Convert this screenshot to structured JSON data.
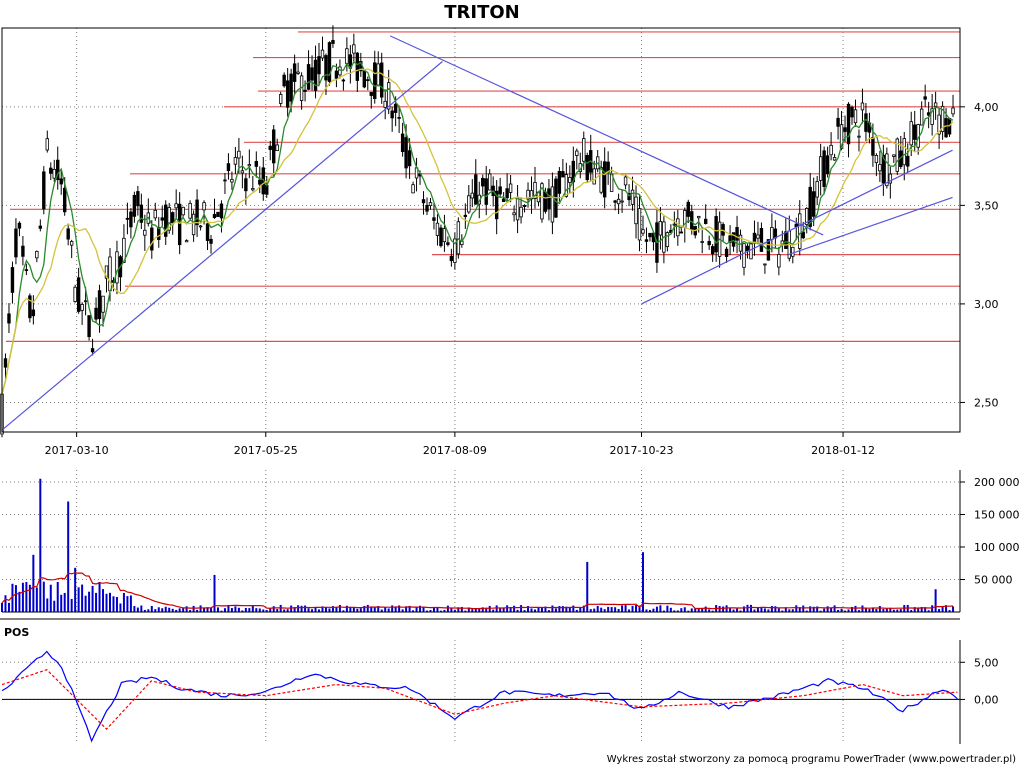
{
  "chart_data": [
    {
      "type": "candlestick",
      "title": "TRITON",
      "x_ticks": [
        "2017-03-10",
        "2017-05-25",
        "2017-08-09",
        "2017-10-23",
        "2018-01-12"
      ],
      "y_ticks": [
        "2,50",
        "3,00",
        "3,50",
        "4,00"
      ],
      "ylim": [
        2.35,
        4.4
      ],
      "grid": true,
      "close_path": [
        [
          "2017-02-08",
          2.45
        ],
        [
          "2017-02-14",
          3.4
        ],
        [
          "2017-02-20",
          2.9
        ],
        [
          "2017-02-26",
          3.75
        ],
        [
          "2017-03-04",
          3.6
        ],
        [
          "2017-03-10",
          3.05
        ],
        [
          "2017-03-16",
          2.85
        ],
        [
          "2017-03-22",
          3.1
        ],
        [
          "2017-03-28",
          3.25
        ],
        [
          "2017-04-03",
          3.5
        ],
        [
          "2017-04-09",
          3.35
        ],
        [
          "2017-04-15",
          3.45
        ],
        [
          "2017-04-21",
          3.4
        ],
        [
          "2017-04-27",
          3.42
        ],
        [
          "2017-05-03",
          3.4
        ],
        [
          "2017-05-13",
          3.7
        ],
        [
          "2017-05-25",
          3.6
        ],
        [
          "2017-06-02",
          4.1
        ],
        [
          "2017-06-12",
          4.15
        ],
        [
          "2017-06-22",
          4.25
        ],
        [
          "2017-07-02",
          4.2
        ],
        [
          "2017-07-12",
          4.1
        ],
        [
          "2017-07-22",
          3.7
        ],
        [
          "2017-08-01",
          3.4
        ],
        [
          "2017-08-09",
          3.3
        ],
        [
          "2017-08-19",
          3.6
        ],
        [
          "2017-08-29",
          3.5
        ],
        [
          "2017-09-08",
          3.55
        ],
        [
          "2017-09-18",
          3.52
        ],
        [
          "2017-09-28",
          3.75
        ],
        [
          "2017-10-08",
          3.65
        ],
        [
          "2017-10-18",
          3.55
        ],
        [
          "2017-10-23",
          3.35
        ],
        [
          "2017-10-28",
          3.3
        ],
        [
          "2017-11-07",
          3.45
        ],
        [
          "2017-11-17",
          3.4
        ],
        [
          "2017-11-27",
          3.28
        ],
        [
          "2017-12-07",
          3.3
        ],
        [
          "2017-12-17",
          3.28
        ],
        [
          "2017-12-27",
          3.4
        ],
        [
          "2018-01-06",
          3.75
        ],
        [
          "2018-01-12",
          3.9
        ],
        [
          "2018-01-20",
          3.95
        ],
        [
          "2018-01-28",
          3.7
        ],
        [
          "2018-02-05",
          3.75
        ],
        [
          "2018-02-13",
          3.95
        ],
        [
          "2018-02-21",
          3.95
        ]
      ],
      "horizontal_levels": [
        4.38,
        4.25,
        4.08,
        4.0,
        3.82,
        3.66,
        3.48,
        3.25,
        3.09,
        2.81
      ],
      "trendlines": [
        [
          [
            "2017-02-08",
            2.36
          ],
          [
            "2017-08-04",
            4.23
          ]
        ],
        [
          [
            "2017-07-14",
            4.36
          ],
          [
            "2018-01-04",
            3.35
          ]
        ],
        [
          [
            "2017-10-23",
            3.0
          ],
          [
            "2018-02-25",
            3.78
          ]
        ],
        [
          [
            "2017-12-21",
            3.25
          ],
          [
            "2018-02-25",
            3.54
          ]
        ]
      ]
    },
    {
      "type": "bar",
      "title": "",
      "y_ticks": [
        "50 000",
        "100 000",
        "150 000",
        "200 000"
      ],
      "ylim": [
        0,
        200000
      ],
      "spikes": [
        {
          "date": "2017-02-20",
          "value": 88000
        },
        {
          "date": "2017-02-24",
          "value": 205000
        },
        {
          "date": "2017-03-06",
          "value": 170000
        },
        {
          "date": "2017-03-10",
          "value": 68000
        },
        {
          "date": "2017-05-05",
          "value": 57000
        },
        {
          "date": "2017-10-01",
          "value": 77000
        },
        {
          "date": "2017-10-23",
          "value": 92000
        },
        {
          "date": "2018-02-18",
          "value": 35000
        }
      ],
      "series": [
        {
          "color": "#0000cc"
        },
        {
          "color": "#cc0000"
        }
      ]
    },
    {
      "type": "line",
      "title": "POS",
      "y_ticks": [
        "0,00",
        "5,00"
      ],
      "ylim": [
        -6,
        8
      ],
      "series": [
        {
          "color": "#0000ff",
          "points": [
            [
              "2017-02-08",
              1.0
            ],
            [
              "2017-02-26",
              6.5
            ],
            [
              "2017-03-04",
              4.5
            ],
            [
              "2017-03-16",
              -5.5
            ],
            [
              "2017-03-28",
              2.0
            ],
            [
              "2017-04-09",
              3.0
            ],
            [
              "2017-04-21",
              1.5
            ],
            [
              "2017-05-08",
              0.5
            ],
            [
              "2017-05-25",
              1.0
            ],
            [
              "2017-06-12",
              3.5
            ],
            [
              "2017-07-02",
              2.0
            ],
            [
              "2017-07-22",
              1.5
            ],
            [
              "2017-08-09",
              -2.5
            ],
            [
              "2017-08-29",
              1.0
            ],
            [
              "2017-09-18",
              0.5
            ],
            [
              "2017-10-08",
              1.0
            ],
            [
              "2017-10-23",
              -1.5
            ],
            [
              "2017-11-07",
              1.0
            ],
            [
              "2017-11-27",
              -1.0
            ],
            [
              "2017-12-17",
              0.5
            ],
            [
              "2018-01-06",
              2.5
            ],
            [
              "2018-01-20",
              1.5
            ],
            [
              "2018-02-05",
              -1.5
            ],
            [
              "2018-02-21",
              1.5
            ],
            [
              "2018-02-28",
              0.0
            ]
          ]
        },
        {
          "color": "#ff0000",
          "points": [
            [
              "2017-02-08",
              2.0
            ],
            [
              "2017-02-26",
              4.0
            ],
            [
              "2017-03-10",
              0.0
            ],
            [
              "2017-03-22",
              -4.0
            ],
            [
              "2017-04-09",
              2.5
            ],
            [
              "2017-04-27",
              1.0
            ],
            [
              "2017-05-25",
              0.5
            ],
            [
              "2017-06-22",
              2.0
            ],
            [
              "2017-07-12",
              1.5
            ],
            [
              "2017-08-09",
              -2.0
            ],
            [
              "2017-08-29",
              -0.5
            ],
            [
              "2017-09-18",
              0.5
            ],
            [
              "2017-10-23",
              -1.0
            ],
            [
              "2017-11-27",
              -0.5
            ],
            [
              "2017-12-27",
              0.5
            ],
            [
              "2018-01-20",
              2.0
            ],
            [
              "2018-02-05",
              0.5
            ],
            [
              "2018-02-28",
              1.0
            ]
          ]
        }
      ]
    }
  ],
  "footer": "Wykres został stworzony za pomocą programu PowerTrader (www.powertrader.pl)"
}
